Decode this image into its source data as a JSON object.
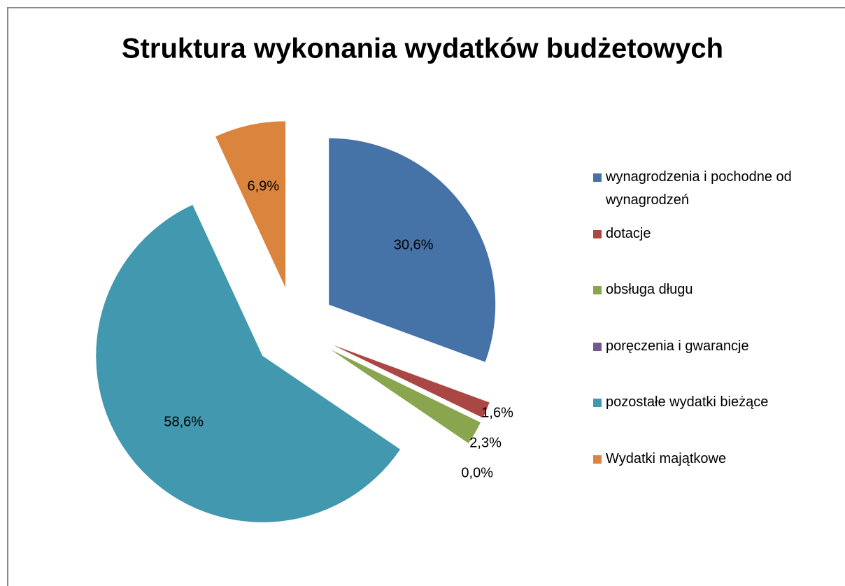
{
  "chart_data": {
    "type": "pie",
    "title": "Struktura wykonania wydatków budżetowych",
    "categories": [
      "wynagrodzenia i pochodne od wynagrodzeń",
      "dotacje",
      "obsługa długu",
      "poręczenia i gwarancje",
      "pozostałe wydatki bieżące",
      "Wydatki majątkowe"
    ],
    "values": [
      30.6,
      1.6,
      2.3,
      0.0,
      58.6,
      6.9
    ],
    "value_labels": [
      "30,6%",
      "1,6%",
      "2,3%",
      "0,0%",
      "58,6%",
      "6,9%"
    ],
    "colors": [
      "#4572a7",
      "#aa4643",
      "#89a54e",
      "#71588f",
      "#4198af",
      "#db843d"
    ],
    "legend": "right"
  }
}
